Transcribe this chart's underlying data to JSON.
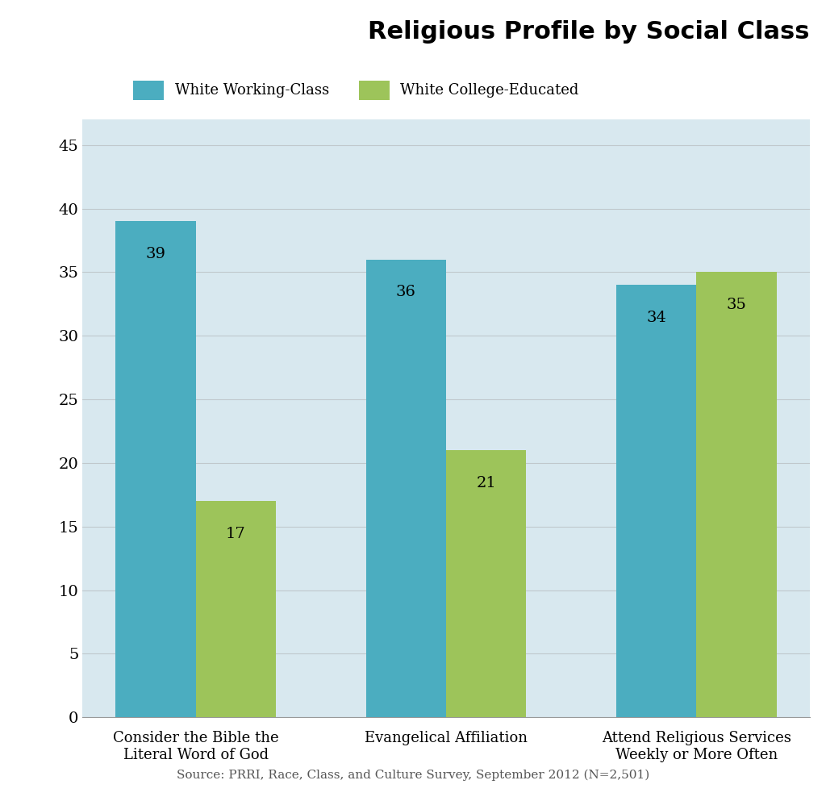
{
  "title": "Religious Profile by Social Class",
  "categories": [
    "Consider the Bible the\nLiteral Word of God",
    "Evangelical Affiliation",
    "Attend Religious Services\nWeekly or More Often"
  ],
  "working_class": [
    39,
    36,
    34
  ],
  "college_educated": [
    17,
    21,
    35
  ],
  "working_class_color": "#4BADC0",
  "college_educated_color": "#9DC45A",
  "chart_bg_color": "#D8E8EF",
  "title_bg_color": "#FFFFFF",
  "ylim": [
    0,
    47
  ],
  "yticks": [
    0,
    5,
    10,
    15,
    20,
    25,
    30,
    35,
    40,
    45
  ],
  "legend_labels": [
    "White Working-Class",
    "White College-Educated"
  ],
  "source_text": "Source: PRRI, Race, Class, and Culture Survey, September 2012 (N=2,501)",
  "bar_width": 0.32,
  "title_fontsize": 22,
  "tick_fontsize": 14,
  "label_fontsize": 13,
  "legend_fontsize": 13,
  "value_fontsize": 14,
  "source_fontsize": 11
}
